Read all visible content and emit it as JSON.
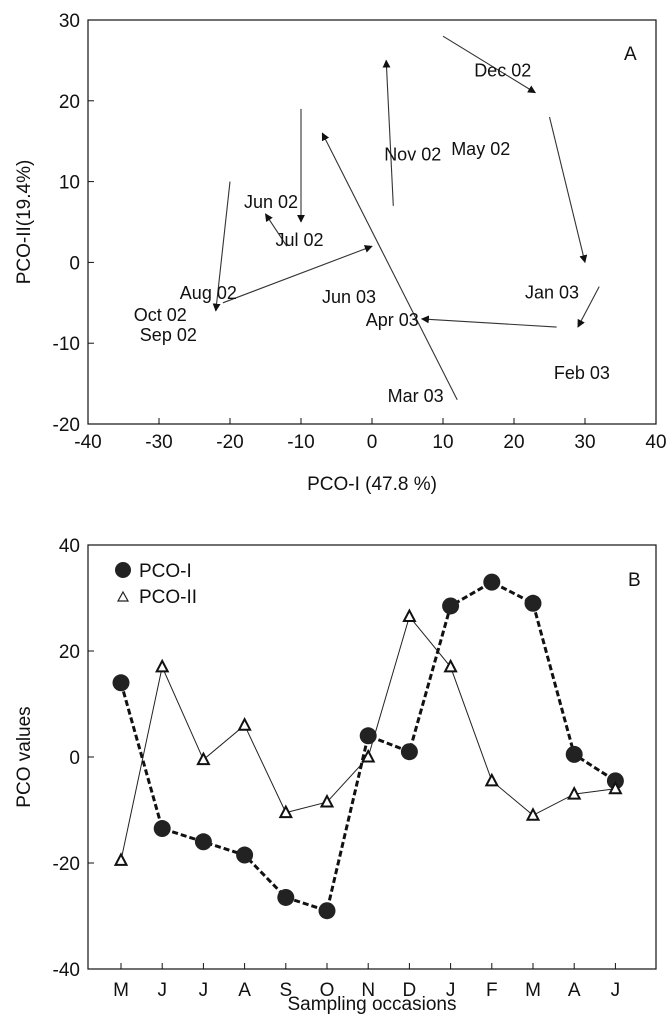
{
  "chart_data": [
    {
      "type": "scatter",
      "panel": "A",
      "xlabel": "PCO-I (47.8 %)",
      "ylabel": "PCO-II(19.4%)",
      "xlim": [
        -40,
        40
      ],
      "ylim": [
        -20,
        30
      ],
      "xticks": [
        -40,
        -30,
        -20,
        -10,
        0,
        10,
        20,
        30,
        40
      ],
      "yticks": [
        -20,
        -10,
        0,
        10,
        20,
        30
      ],
      "grid": false,
      "points": [
        {
          "label": "May 02",
          "x": 12,
          "y": 16
        },
        {
          "label": "Jun 02",
          "x": -10,
          "y": 5
        },
        {
          "label": "Jul 02",
          "x": -15,
          "y": 6
        },
        {
          "label": "Aug 02",
          "x": -22,
          "y": -6
        },
        {
          "label": "Sep 02",
          "x": -22,
          "y": -5
        },
        {
          "label": "Oct 02",
          "x": -22,
          "y": -5
        },
        {
          "label": "Nov 02",
          "x": 2,
          "y": 25
        },
        {
          "label": "Dec 02",
          "x": 22,
          "y": 21
        },
        {
          "label": "Jan 03",
          "x": 30,
          "y": 0
        },
        {
          "label": "Feb 03",
          "x": 29,
          "y": -8
        },
        {
          "label": "Mar 03",
          "x": 7,
          "y": -7
        },
        {
          "label": "Apr 03",
          "x": 7,
          "y": -7
        },
        {
          "label": "Jun 03",
          "x": 0,
          "y": 2
        }
      ],
      "arrows": [
        {
          "from": [
            12,
            -17
          ],
          "to": [
            -7,
            16
          ]
        },
        {
          "from": [
            -10,
            19
          ],
          "to": [
            -10,
            5
          ]
        },
        {
          "from": [
            -12,
            2
          ],
          "to": [
            -15,
            6
          ]
        },
        {
          "from": [
            -20,
            10
          ],
          "to": [
            -22,
            -6
          ]
        },
        {
          "from": [
            -21,
            -5
          ],
          "to": [
            0,
            2
          ]
        },
        {
          "from": [
            3,
            7
          ],
          "to": [
            2,
            25
          ]
        },
        {
          "from": [
            10,
            28
          ],
          "to": [
            23,
            21
          ]
        },
        {
          "from": [
            25,
            18
          ],
          "to": [
            30,
            0
          ]
        },
        {
          "from": [
            32,
            -3
          ],
          "to": [
            29,
            -8
          ]
        },
        {
          "from": [
            26,
            -8
          ],
          "to": [
            7,
            -7
          ]
        }
      ]
    },
    {
      "type": "line",
      "panel": "B",
      "xlabel": "Sampling occasions",
      "ylabel": "PCO  values",
      "categories": [
        "M",
        "J",
        "J",
        "A",
        "S",
        "O",
        "N",
        "D",
        "J",
        "F",
        "M",
        "A",
        "J"
      ],
      "ylim": [
        -40,
        40
      ],
      "yticks": [
        -40,
        -20,
        0,
        20,
        40
      ],
      "grid": false,
      "legend": "top-left",
      "series": [
        {
          "name": "PCO-I",
          "marker": "circle",
          "values": [
            14,
            -13.5,
            -16,
            -18.5,
            -26.5,
            -29,
            4,
            1,
            28.5,
            33,
            29,
            0.5,
            -4.5
          ]
        },
        {
          "name": "PCO-II",
          "marker": "triangle",
          "values": [
            -19.5,
            17,
            -0.5,
            6,
            -10.5,
            -8.5,
            0,
            26.5,
            17,
            -4.5,
            -11,
            -7,
            -6
          ]
        }
      ]
    }
  ]
}
